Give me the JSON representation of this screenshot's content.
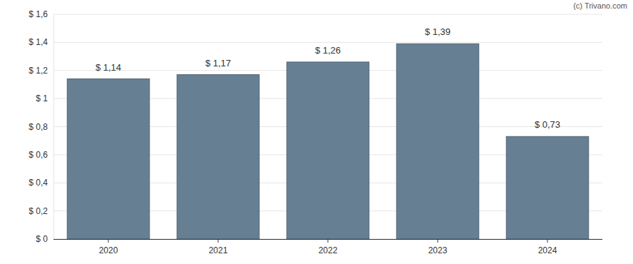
{
  "chart_data": {
    "type": "bar",
    "categories": [
      "2020",
      "2021",
      "2022",
      "2023",
      "2024"
    ],
    "values": [
      1.14,
      1.17,
      1.26,
      1.39,
      0.73
    ],
    "value_labels": [
      "$ 1,14",
      "$ 1,17",
      "$ 1,26",
      "$ 1,39",
      "$ 0,73"
    ],
    "data_labels": true,
    "color": "#677f92",
    "ylim": [
      0,
      1.6
    ],
    "yticks": [
      {
        "value": 0,
        "label": "$ 0"
      },
      {
        "value": 0.2,
        "label": "$ 0,2"
      },
      {
        "value": 0.4,
        "label": "$ 0,4"
      },
      {
        "value": 0.6,
        "label": "$ 0,6"
      },
      {
        "value": 0.8,
        "label": "$ 0,8"
      },
      {
        "value": 1,
        "label": "$ 1"
      },
      {
        "value": 1.2,
        "label": "$ 1,2"
      },
      {
        "value": 1.4,
        "label": "$ 1,4"
      },
      {
        "value": 1.6,
        "label": "$ 1,6"
      }
    ],
    "grid": true,
    "annotations": [
      "(c) Trivano.com"
    ]
  }
}
